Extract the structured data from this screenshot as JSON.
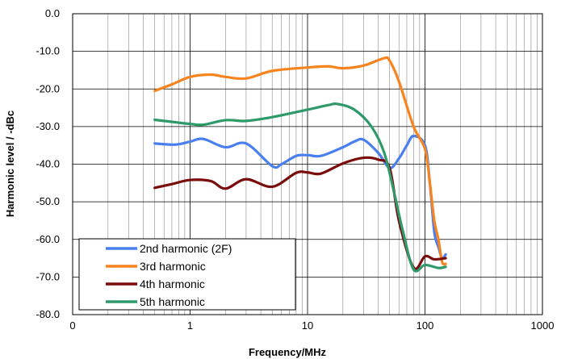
{
  "chart_data": {
    "type": "line",
    "title": "",
    "xlabel": "Frequency/MHz",
    "ylabel": "Harmonic level / -dBc",
    "x_scale": "log",
    "xlim": [
      0.1,
      1000
    ],
    "ylim": [
      -80,
      0
    ],
    "x_tick_labels": [
      "0",
      "1",
      "10",
      "100",
      "1000"
    ],
    "y_ticks": [
      0,
      -10,
      -20,
      -30,
      -40,
      -50,
      -60,
      -70,
      -80
    ],
    "y_tick_labels": [
      "0.0",
      "-10.0",
      "-20.0",
      "-30.0",
      "-40.0",
      "-50.0",
      "-60.0",
      "-70.0",
      "-80.0"
    ],
    "grid": true,
    "legend_position": "bottom-left",
    "series": [
      {
        "name": "2nd harmonic (2F)",
        "color": "#4a7ff0",
        "points": [
          [
            0.5,
            -34.5
          ],
          [
            0.75,
            -34.8
          ],
          [
            1,
            -34
          ],
          [
            1.3,
            -33.3
          ],
          [
            2,
            -35.5
          ],
          [
            3,
            -34.5
          ],
          [
            5,
            -40.5
          ],
          [
            6,
            -40
          ],
          [
            8,
            -37.8
          ],
          [
            10,
            -37.6
          ],
          [
            13,
            -37.8
          ],
          [
            20,
            -35.5
          ],
          [
            25,
            -34
          ],
          [
            30,
            -33.5
          ],
          [
            40,
            -37
          ],
          [
            50,
            -41
          ],
          [
            60,
            -38.5
          ],
          [
            70,
            -35
          ],
          [
            80,
            -32.5
          ],
          [
            100,
            -35
          ],
          [
            110,
            -45
          ],
          [
            120,
            -58
          ],
          [
            130,
            -62
          ],
          [
            140,
            -65
          ],
          [
            150,
            -64
          ]
        ]
      },
      {
        "name": "3rd harmonic",
        "color": "#f7841f",
        "points": [
          [
            0.5,
            -20.5
          ],
          [
            0.7,
            -18.8
          ],
          [
            1,
            -16.8
          ],
          [
            1.5,
            -16.2
          ],
          [
            2,
            -16.8
          ],
          [
            3,
            -17.2
          ],
          [
            5,
            -15.2
          ],
          [
            10,
            -14.3
          ],
          [
            15,
            -14
          ],
          [
            20,
            -14.5
          ],
          [
            30,
            -13.8
          ],
          [
            45,
            -11.8
          ],
          [
            50,
            -12.5
          ],
          [
            60,
            -18
          ],
          [
            80,
            -30
          ],
          [
            100,
            -36
          ],
          [
            110,
            -45
          ],
          [
            120,
            -55
          ],
          [
            130,
            -60
          ],
          [
            140,
            -66
          ],
          [
            150,
            -66.5
          ]
        ]
      },
      {
        "name": "4th harmonic",
        "color": "#7a0c0c",
        "points": [
          [
            0.5,
            -46.3
          ],
          [
            0.7,
            -45.3
          ],
          [
            1,
            -44.2
          ],
          [
            1.5,
            -44.5
          ],
          [
            2,
            -46.5
          ],
          [
            3,
            -44
          ],
          [
            5,
            -46
          ],
          [
            8,
            -42.3
          ],
          [
            10,
            -42.2
          ],
          [
            13,
            -42.5
          ],
          [
            20,
            -39.8
          ],
          [
            30,
            -38.3
          ],
          [
            40,
            -38.8
          ],
          [
            50,
            -41
          ],
          [
            60,
            -55
          ],
          [
            80,
            -67.5
          ],
          [
            100,
            -64.5
          ],
          [
            120,
            -65.3
          ],
          [
            150,
            -65
          ]
        ]
      },
      {
        "name": "5th harmonic",
        "color": "#2e9a6a",
        "points": [
          [
            0.5,
            -28.2
          ],
          [
            1,
            -29.3
          ],
          [
            1.3,
            -29.5
          ],
          [
            2,
            -28.3
          ],
          [
            3,
            -28.5
          ],
          [
            5,
            -27.5
          ],
          [
            10,
            -25.5
          ],
          [
            15,
            -24.3
          ],
          [
            18,
            -24
          ],
          [
            25,
            -25.5
          ],
          [
            35,
            -30
          ],
          [
            45,
            -37
          ],
          [
            55,
            -48
          ],
          [
            65,
            -58
          ],
          [
            80,
            -68
          ],
          [
            100,
            -66.8
          ],
          [
            130,
            -67.6
          ],
          [
            150,
            -67.3
          ]
        ]
      }
    ]
  }
}
